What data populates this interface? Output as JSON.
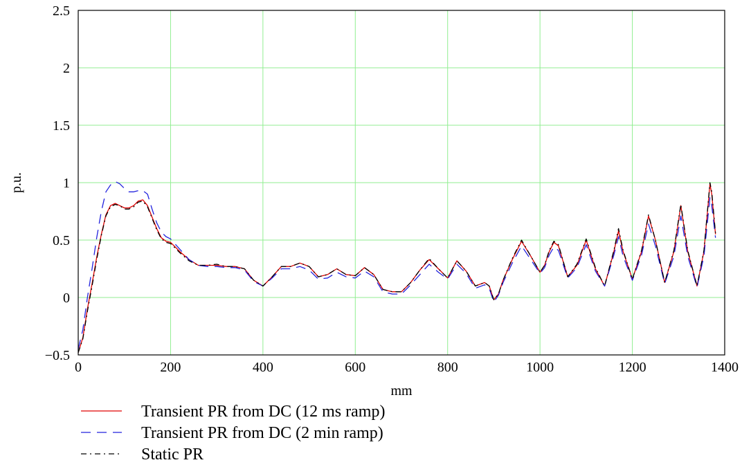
{
  "chart_data": {
    "type": "line",
    "title": "",
    "xlabel": "mm",
    "ylabel": "p.u.",
    "xlim": [
      0,
      1400
    ],
    "ylim": [
      -0.5,
      2.5
    ],
    "xticks": [
      0,
      200,
      400,
      600,
      800,
      1000,
      1200,
      1400
    ],
    "xtick_labels": [
      "0",
      "200",
      "400",
      "600",
      "800",
      "1000",
      "1200",
      "1400"
    ],
    "yticks": [
      -0.5,
      0,
      0.5,
      1,
      1.5,
      2,
      2.5
    ],
    "ytick_labels": [
      "−0.5",
      "0",
      "0.5",
      "1",
      "1.5",
      "2",
      "2.5"
    ],
    "grid": true,
    "grid_color": "#90ee90",
    "legend_position": "bottom-left",
    "series": [
      {
        "name": "Transient PR from DC (12 ms ramp)",
        "color": "#e00000",
        "dash": "solid",
        "x": [
          0,
          10,
          20,
          30,
          40,
          50,
          60,
          70,
          80,
          90,
          100,
          110,
          120,
          130,
          140,
          150,
          160,
          170,
          180,
          190,
          200,
          220,
          240,
          260,
          280,
          300,
          320,
          340,
          360,
          380,
          400,
          420,
          440,
          460,
          480,
          500,
          520,
          540,
          560,
          580,
          600,
          620,
          640,
          660,
          680,
          700,
          720,
          740,
          760,
          780,
          800,
          820,
          840,
          860,
          880,
          890,
          900,
          910,
          920,
          940,
          960,
          980,
          1000,
          1010,
          1020,
          1030,
          1040,
          1060,
          1080,
          1100,
          1120,
          1140,
          1160,
          1170,
          1180,
          1200,
          1220,
          1235,
          1250,
          1270,
          1290,
          1305,
          1320,
          1340,
          1355,
          1368,
          1372,
          1380
        ],
        "values": [
          -0.48,
          -0.35,
          -0.1,
          0.12,
          0.35,
          0.55,
          0.72,
          0.8,
          0.82,
          0.8,
          0.78,
          0.78,
          0.8,
          0.84,
          0.85,
          0.8,
          0.7,
          0.6,
          0.52,
          0.49,
          0.48,
          0.4,
          0.33,
          0.28,
          0.28,
          0.28,
          0.27,
          0.27,
          0.25,
          0.15,
          0.1,
          0.18,
          0.27,
          0.27,
          0.3,
          0.27,
          0.18,
          0.2,
          0.25,
          0.2,
          0.19,
          0.26,
          0.2,
          0.07,
          0.05,
          0.05,
          0.13,
          0.24,
          0.33,
          0.25,
          0.17,
          0.32,
          0.23,
          0.1,
          0.13,
          0.1,
          -0.02,
          0.03,
          0.15,
          0.33,
          0.49,
          0.36,
          0.22,
          0.28,
          0.4,
          0.48,
          0.45,
          0.18,
          0.28,
          0.5,
          0.25,
          0.1,
          0.4,
          0.58,
          0.4,
          0.16,
          0.4,
          0.71,
          0.5,
          0.13,
          0.4,
          0.8,
          0.4,
          0.1,
          0.4,
          0.99,
          0.9,
          0.55
        ]
      },
      {
        "name": "Transient PR from DC (2 min ramp)",
        "color": "#2222dd",
        "dash": "14,9",
        "x": [
          0,
          10,
          20,
          30,
          40,
          50,
          60,
          70,
          80,
          90,
          100,
          110,
          120,
          130,
          140,
          150,
          160,
          170,
          180,
          190,
          200,
          220,
          240,
          260,
          280,
          300,
          320,
          340,
          360,
          380,
          400,
          420,
          440,
          460,
          480,
          500,
          520,
          540,
          560,
          580,
          600,
          620,
          640,
          660,
          680,
          700,
          720,
          740,
          760,
          780,
          800,
          820,
          840,
          860,
          880,
          890,
          900,
          910,
          920,
          940,
          960,
          980,
          1000,
          1010,
          1020,
          1030,
          1040,
          1060,
          1080,
          1100,
          1120,
          1140,
          1160,
          1170,
          1180,
          1200,
          1220,
          1235,
          1250,
          1270,
          1290,
          1305,
          1320,
          1340,
          1355,
          1368,
          1372,
          1380
        ],
        "values": [
          -0.45,
          -0.28,
          0.0,
          0.25,
          0.52,
          0.75,
          0.92,
          0.98,
          1.01,
          0.99,
          0.95,
          0.92,
          0.92,
          0.93,
          0.93,
          0.9,
          0.77,
          0.65,
          0.57,
          0.53,
          0.51,
          0.42,
          0.33,
          0.28,
          0.27,
          0.27,
          0.26,
          0.26,
          0.24,
          0.14,
          0.1,
          0.17,
          0.25,
          0.25,
          0.27,
          0.24,
          0.16,
          0.17,
          0.22,
          0.18,
          0.17,
          0.23,
          0.18,
          0.05,
          0.03,
          0.03,
          0.11,
          0.2,
          0.29,
          0.22,
          0.16,
          0.29,
          0.21,
          0.08,
          0.11,
          0.08,
          -0.04,
          0.02,
          0.13,
          0.3,
          0.45,
          0.33,
          0.21,
          0.26,
          0.37,
          0.44,
          0.41,
          0.17,
          0.26,
          0.46,
          0.23,
          0.1,
          0.37,
          0.53,
          0.36,
          0.15,
          0.37,
          0.64,
          0.45,
          0.12,
          0.36,
          0.71,
          0.36,
          0.09,
          0.36,
          0.87,
          0.8,
          0.52
        ]
      },
      {
        "name": "Static PR",
        "color": "#000000",
        "dash": "8,5,2,5",
        "x": [
          0,
          10,
          20,
          30,
          40,
          50,
          60,
          70,
          80,
          90,
          100,
          110,
          120,
          130,
          140,
          150,
          160,
          170,
          180,
          190,
          200,
          220,
          240,
          260,
          280,
          300,
          320,
          340,
          360,
          380,
          400,
          420,
          440,
          460,
          480,
          500,
          520,
          540,
          560,
          580,
          600,
          620,
          640,
          660,
          680,
          700,
          720,
          740,
          760,
          780,
          800,
          820,
          840,
          860,
          880,
          890,
          900,
          910,
          920,
          940,
          960,
          980,
          1000,
          1010,
          1020,
          1030,
          1040,
          1060,
          1080,
          1100,
          1120,
          1140,
          1160,
          1170,
          1180,
          1200,
          1220,
          1235,
          1250,
          1270,
          1290,
          1305,
          1320,
          1340,
          1355,
          1368,
          1372,
          1380
        ],
        "values": [
          -0.48,
          -0.36,
          -0.12,
          0.1,
          0.33,
          0.54,
          0.71,
          0.79,
          0.81,
          0.8,
          0.77,
          0.77,
          0.79,
          0.83,
          0.84,
          0.79,
          0.69,
          0.59,
          0.51,
          0.48,
          0.47,
          0.39,
          0.32,
          0.28,
          0.28,
          0.29,
          0.27,
          0.27,
          0.25,
          0.15,
          0.1,
          0.18,
          0.27,
          0.27,
          0.3,
          0.27,
          0.18,
          0.2,
          0.25,
          0.2,
          0.19,
          0.26,
          0.2,
          0.07,
          0.05,
          0.05,
          0.13,
          0.24,
          0.34,
          0.25,
          0.17,
          0.32,
          0.23,
          0.1,
          0.13,
          0.1,
          -0.02,
          0.03,
          0.15,
          0.34,
          0.5,
          0.36,
          0.22,
          0.28,
          0.41,
          0.49,
          0.46,
          0.18,
          0.29,
          0.51,
          0.26,
          0.1,
          0.41,
          0.6,
          0.41,
          0.16,
          0.41,
          0.72,
          0.5,
          0.13,
          0.41,
          0.81,
          0.41,
          0.1,
          0.41,
          1.0,
          0.92,
          0.56
        ]
      }
    ]
  }
}
